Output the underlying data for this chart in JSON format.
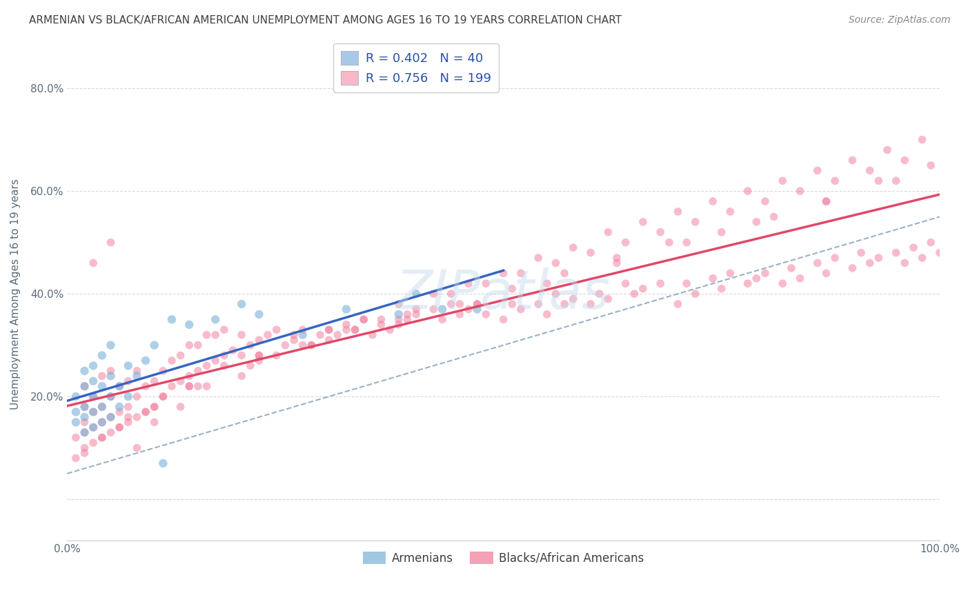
{
  "title": "ARMENIAN VS BLACK/AFRICAN AMERICAN UNEMPLOYMENT AMONG AGES 16 TO 19 YEARS CORRELATION CHART",
  "source": "Source: ZipAtlas.com",
  "ylabel": "Unemployment Among Ages 16 to 19 years",
  "xlim": [
    0.0,
    1.0
  ],
  "ylim": [
    -0.08,
    0.88
  ],
  "x_ticks": [
    0.0,
    0.2,
    0.4,
    0.6,
    0.8,
    1.0
  ],
  "x_tick_labels": [
    "0.0%",
    "",
    "",
    "",
    "",
    "100.0%"
  ],
  "y_ticks": [
    0.0,
    0.2,
    0.4,
    0.6,
    0.8
  ],
  "y_tick_labels": [
    "",
    "20.0%",
    "40.0%",
    "60.0%",
    "80.0%"
  ],
  "r_armenian": 0.402,
  "n_armenian": 40,
  "r_black": 0.756,
  "n_black": 199,
  "legend_armenian_label": "Armenians",
  "legend_black_label": "Blacks/African Americans",
  "armenian_color": "#a8c8e8",
  "black_color": "#f8b8c8",
  "armenian_scatter_color": "#7ab0d8",
  "black_scatter_color": "#f07898",
  "armenian_line_color": "#3565c0",
  "black_line_color": "#e04868",
  "dash_line_color": "#9ab0c8",
  "background_color": "#ffffff",
  "grid_color": "#d8d8d8",
  "title_color": "#404040",
  "source_color": "#888888",
  "watermark": "ZIPatlas",
  "armenian_scatter_x": [
    0.01,
    0.01,
    0.01,
    0.02,
    0.02,
    0.02,
    0.02,
    0.02,
    0.03,
    0.03,
    0.03,
    0.03,
    0.03,
    0.04,
    0.04,
    0.04,
    0.04,
    0.05,
    0.05,
    0.05,
    0.05,
    0.06,
    0.06,
    0.07,
    0.07,
    0.08,
    0.09,
    0.1,
    0.11,
    0.12,
    0.14,
    0.17,
    0.2,
    0.22,
    0.27,
    0.32,
    0.38,
    0.4,
    0.43,
    0.47
  ],
  "armenian_scatter_y": [
    0.15,
    0.17,
    0.2,
    0.13,
    0.16,
    0.18,
    0.22,
    0.25,
    0.14,
    0.17,
    0.2,
    0.23,
    0.26,
    0.15,
    0.18,
    0.22,
    0.28,
    0.16,
    0.2,
    0.24,
    0.3,
    0.18,
    0.22,
    0.2,
    0.26,
    0.24,
    0.27,
    0.3,
    0.07,
    0.35,
    0.34,
    0.35,
    0.38,
    0.36,
    0.32,
    0.37,
    0.36,
    0.4,
    0.37,
    0.37
  ],
  "black_scatter_x": [
    0.01,
    0.01,
    0.02,
    0.02,
    0.02,
    0.02,
    0.02,
    0.03,
    0.03,
    0.03,
    0.03,
    0.04,
    0.04,
    0.04,
    0.04,
    0.05,
    0.05,
    0.05,
    0.05,
    0.06,
    0.06,
    0.06,
    0.07,
    0.07,
    0.07,
    0.08,
    0.08,
    0.08,
    0.09,
    0.09,
    0.1,
    0.1,
    0.11,
    0.11,
    0.12,
    0.12,
    0.13,
    0.13,
    0.14,
    0.14,
    0.15,
    0.15,
    0.16,
    0.16,
    0.17,
    0.17,
    0.18,
    0.18,
    0.19,
    0.2,
    0.2,
    0.21,
    0.22,
    0.23,
    0.24,
    0.25,
    0.26,
    0.27,
    0.28,
    0.29,
    0.3,
    0.31,
    0.32,
    0.33,
    0.34,
    0.35,
    0.36,
    0.37,
    0.38,
    0.39,
    0.4,
    0.42,
    0.43,
    0.44,
    0.45,
    0.46,
    0.47,
    0.48,
    0.5,
    0.51,
    0.52,
    0.54,
    0.55,
    0.56,
    0.57,
    0.58,
    0.6,
    0.61,
    0.62,
    0.64,
    0.65,
    0.66,
    0.68,
    0.7,
    0.71,
    0.72,
    0.74,
    0.75,
    0.76,
    0.78,
    0.79,
    0.8,
    0.82,
    0.83,
    0.84,
    0.86,
    0.87,
    0.88,
    0.9,
    0.91,
    0.92,
    0.93,
    0.95,
    0.96,
    0.97,
    0.98,
    0.99,
    1.0,
    0.03,
    0.05,
    0.08,
    0.1,
    0.13,
    0.16,
    0.2,
    0.24,
    0.28,
    0.32,
    0.36,
    0.4,
    0.44,
    0.48,
    0.52,
    0.56,
    0.6,
    0.64,
    0.68,
    0.72,
    0.76,
    0.8,
    0.84,
    0.88,
    0.92,
    0.96,
    0.02,
    0.06,
    0.1,
    0.14,
    0.18,
    0.22,
    0.26,
    0.3,
    0.34,
    0.38,
    0.42,
    0.46,
    0.5,
    0.54,
    0.58,
    0.62,
    0.66,
    0.7,
    0.74,
    0.78,
    0.82,
    0.86,
    0.9,
    0.94,
    0.98,
    0.04,
    0.09,
    0.15,
    0.21,
    0.27,
    0.33,
    0.39,
    0.45,
    0.51,
    0.57,
    0.63,
    0.69,
    0.75,
    0.81,
    0.87,
    0.93,
    0.99,
    0.07,
    0.14,
    0.22,
    0.3,
    0.38,
    0.47,
    0.55,
    0.63,
    0.71,
    0.79,
    0.87,
    0.95,
    0.11,
    0.22
  ],
  "black_scatter_y": [
    0.08,
    0.12,
    0.1,
    0.13,
    0.15,
    0.18,
    0.22,
    0.11,
    0.14,
    0.17,
    0.2,
    0.12,
    0.15,
    0.18,
    0.24,
    0.13,
    0.16,
    0.2,
    0.25,
    0.14,
    0.17,
    0.22,
    0.15,
    0.18,
    0.23,
    0.16,
    0.2,
    0.25,
    0.17,
    0.22,
    0.18,
    0.23,
    0.2,
    0.25,
    0.22,
    0.27,
    0.23,
    0.28,
    0.24,
    0.3,
    0.25,
    0.3,
    0.26,
    0.32,
    0.27,
    0.32,
    0.28,
    0.33,
    0.29,
    0.28,
    0.32,
    0.3,
    0.31,
    0.32,
    0.33,
    0.3,
    0.32,
    0.33,
    0.3,
    0.32,
    0.33,
    0.32,
    0.34,
    0.33,
    0.35,
    0.32,
    0.34,
    0.33,
    0.34,
    0.35,
    0.36,
    0.37,
    0.35,
    0.38,
    0.36,
    0.37,
    0.38,
    0.36,
    0.35,
    0.38,
    0.37,
    0.38,
    0.36,
    0.4,
    0.38,
    0.39,
    0.38,
    0.4,
    0.39,
    0.42,
    0.4,
    0.41,
    0.42,
    0.38,
    0.42,
    0.4,
    0.43,
    0.41,
    0.44,
    0.42,
    0.43,
    0.44,
    0.42,
    0.45,
    0.43,
    0.46,
    0.44,
    0.47,
    0.45,
    0.48,
    0.46,
    0.47,
    0.48,
    0.46,
    0.49,
    0.47,
    0.5,
    0.48,
    0.46,
    0.5,
    0.1,
    0.15,
    0.18,
    0.22,
    0.24,
    0.28,
    0.3,
    0.33,
    0.35,
    0.37,
    0.4,
    0.42,
    0.44,
    0.46,
    0.48,
    0.5,
    0.52,
    0.54,
    0.56,
    0.58,
    0.6,
    0.62,
    0.64,
    0.66,
    0.09,
    0.14,
    0.18,
    0.22,
    0.26,
    0.28,
    0.31,
    0.33,
    0.35,
    0.38,
    0.4,
    0.42,
    0.44,
    0.47,
    0.49,
    0.52,
    0.54,
    0.56,
    0.58,
    0.6,
    0.62,
    0.64,
    0.66,
    0.68,
    0.7,
    0.12,
    0.17,
    0.22,
    0.26,
    0.3,
    0.33,
    0.36,
    0.38,
    0.41,
    0.44,
    0.47,
    0.5,
    0.52,
    0.55,
    0.58,
    0.62,
    0.65,
    0.16,
    0.22,
    0.27,
    0.31,
    0.35,
    0.38,
    0.42,
    0.46,
    0.5,
    0.54,
    0.58,
    0.62,
    0.2,
    0.28
  ]
}
